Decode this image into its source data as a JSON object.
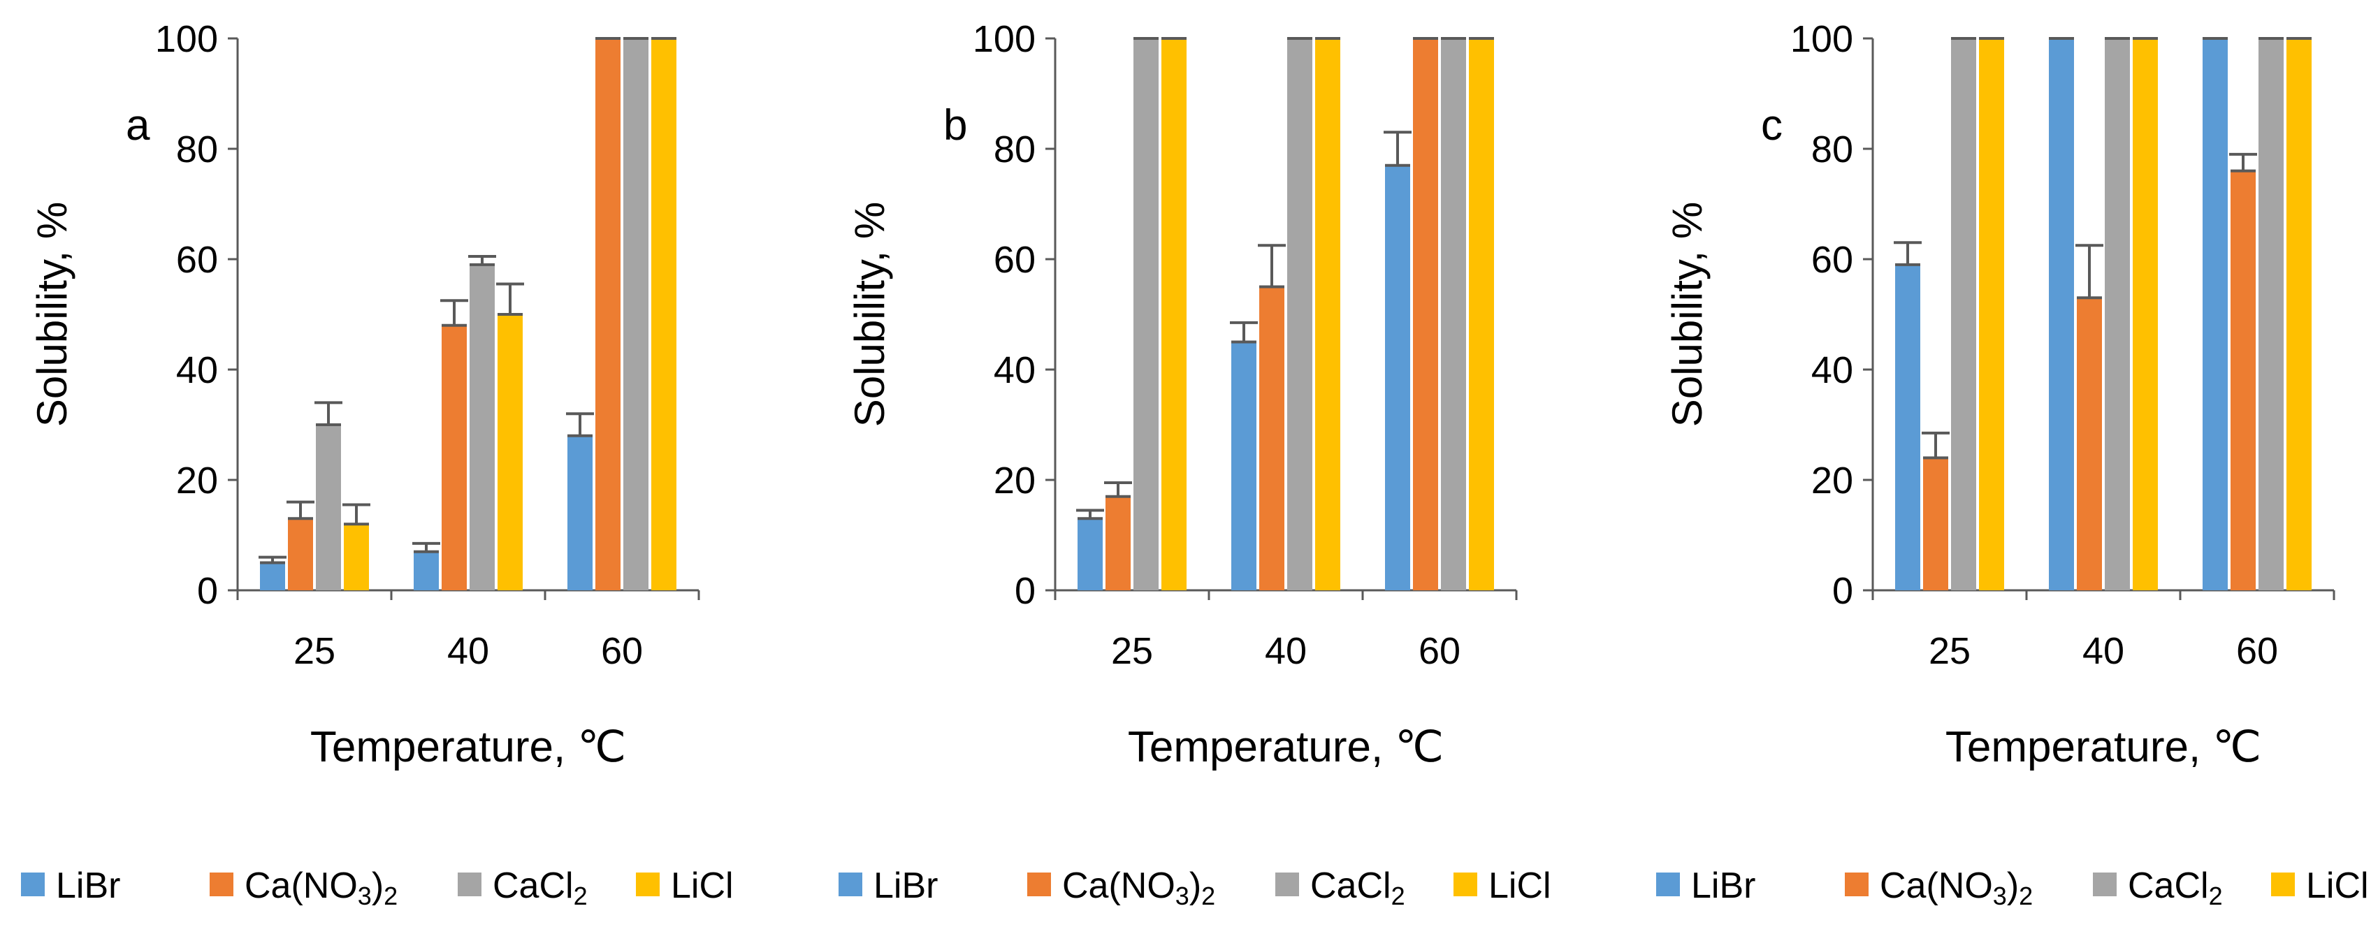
{
  "chart_data": [
    {
      "type": "bar",
      "panel_label": "a",
      "categories": [
        "25",
        "40",
        "60"
      ],
      "xlabel": "Temperature, ℃",
      "ylabel": "Solubility, %",
      "ylim": [
        0,
        100
      ],
      "yticks": [
        "0",
        "20",
        "40",
        "60",
        "80",
        "100"
      ],
      "grid": false,
      "legend_position": "bottom",
      "series": [
        {
          "name": "LiBr",
          "legend_main": "LiBr",
          "legend_sub": "",
          "legend_tail": "",
          "color": "#5B9BD5",
          "values": [
            5,
            7,
            28
          ],
          "errors": [
            1,
            1.5,
            4
          ]
        },
        {
          "name": "Ca(NO3)2",
          "legend_main": "Ca(NO",
          "legend_sub": "3",
          "legend_tail": ")",
          "legend_sub2": "2",
          "color": "#ED7D31",
          "values": [
            13,
            48,
            100
          ],
          "errors": [
            3,
            4.5,
            0
          ]
        },
        {
          "name": "CaCl2",
          "legend_main": "CaCl",
          "legend_sub": "2",
          "legend_tail": "",
          "color": "#A5A5A5",
          "values": [
            30,
            59,
            100
          ],
          "errors": [
            4,
            1.5,
            0
          ]
        },
        {
          "name": "LiCl",
          "legend_main": "LiCl",
          "legend_sub": "",
          "legend_tail": "",
          "color": "#FFC000",
          "values": [
            12,
            50,
            100
          ],
          "errors": [
            3.5,
            5.5,
            0
          ]
        }
      ]
    },
    {
      "type": "bar",
      "panel_label": "b",
      "categories": [
        "25",
        "40",
        "60"
      ],
      "xlabel": "Temperature, ℃",
      "ylabel": "Solubility, %",
      "ylim": [
        0,
        100
      ],
      "yticks": [
        "0",
        "20",
        "40",
        "60",
        "80",
        "100"
      ],
      "grid": false,
      "legend_position": "bottom",
      "series": [
        {
          "name": "LiBr",
          "legend_main": "LiBr",
          "legend_sub": "",
          "legend_tail": "",
          "color": "#5B9BD5",
          "values": [
            13,
            45,
            77
          ],
          "errors": [
            1.5,
            3.5,
            6
          ]
        },
        {
          "name": "Ca(NO3)2",
          "legend_main": "Ca(NO",
          "legend_sub": "3",
          "legend_tail": ")",
          "legend_sub2": "2",
          "color": "#ED7D31",
          "values": [
            17,
            55,
            100
          ],
          "errors": [
            2.5,
            7.5,
            0
          ]
        },
        {
          "name": "CaCl2",
          "legend_main": "CaCl",
          "legend_sub": "2",
          "legend_tail": "",
          "color": "#A5A5A5",
          "values": [
            100,
            100,
            100
          ],
          "errors": [
            0,
            0,
            0
          ]
        },
        {
          "name": "LiCl",
          "legend_main": "LiCl",
          "legend_sub": "",
          "legend_tail": "",
          "color": "#FFC000",
          "values": [
            100,
            100,
            100
          ],
          "errors": [
            0,
            0,
            0
          ]
        }
      ]
    },
    {
      "type": "bar",
      "panel_label": "c",
      "categories": [
        "25",
        "40",
        "60"
      ],
      "xlabel": "Temperature, ℃",
      "ylabel": "Solubility, %",
      "ylim": [
        0,
        100
      ],
      "yticks": [
        "0",
        "20",
        "40",
        "60",
        "80",
        "100"
      ],
      "grid": false,
      "legend_position": "bottom",
      "series": [
        {
          "name": "LiBr",
          "legend_main": "LiBr",
          "legend_sub": "",
          "legend_tail": "",
          "color": "#5B9BD5",
          "values": [
            59,
            100,
            100
          ],
          "errors": [
            4,
            0,
            0
          ]
        },
        {
          "name": "Ca(NO3)2",
          "legend_main": "Ca(NO",
          "legend_sub": "3",
          "legend_tail": ")",
          "legend_sub2": "2",
          "color": "#ED7D31",
          "values": [
            24,
            53,
            76
          ],
          "errors": [
            4.5,
            9.5,
            3
          ]
        },
        {
          "name": "CaCl2",
          "legend_main": "CaCl",
          "legend_sub": "2",
          "legend_tail": "",
          "color": "#A5A5A5",
          "values": [
            100,
            100,
            100
          ],
          "errors": [
            0,
            0,
            0
          ]
        },
        {
          "name": "LiCl",
          "legend_main": "LiCl",
          "legend_sub": "",
          "legend_tail": "",
          "color": "#FFC000",
          "values": [
            100,
            100,
            100
          ],
          "errors": [
            0,
            0,
            0
          ]
        }
      ]
    }
  ]
}
